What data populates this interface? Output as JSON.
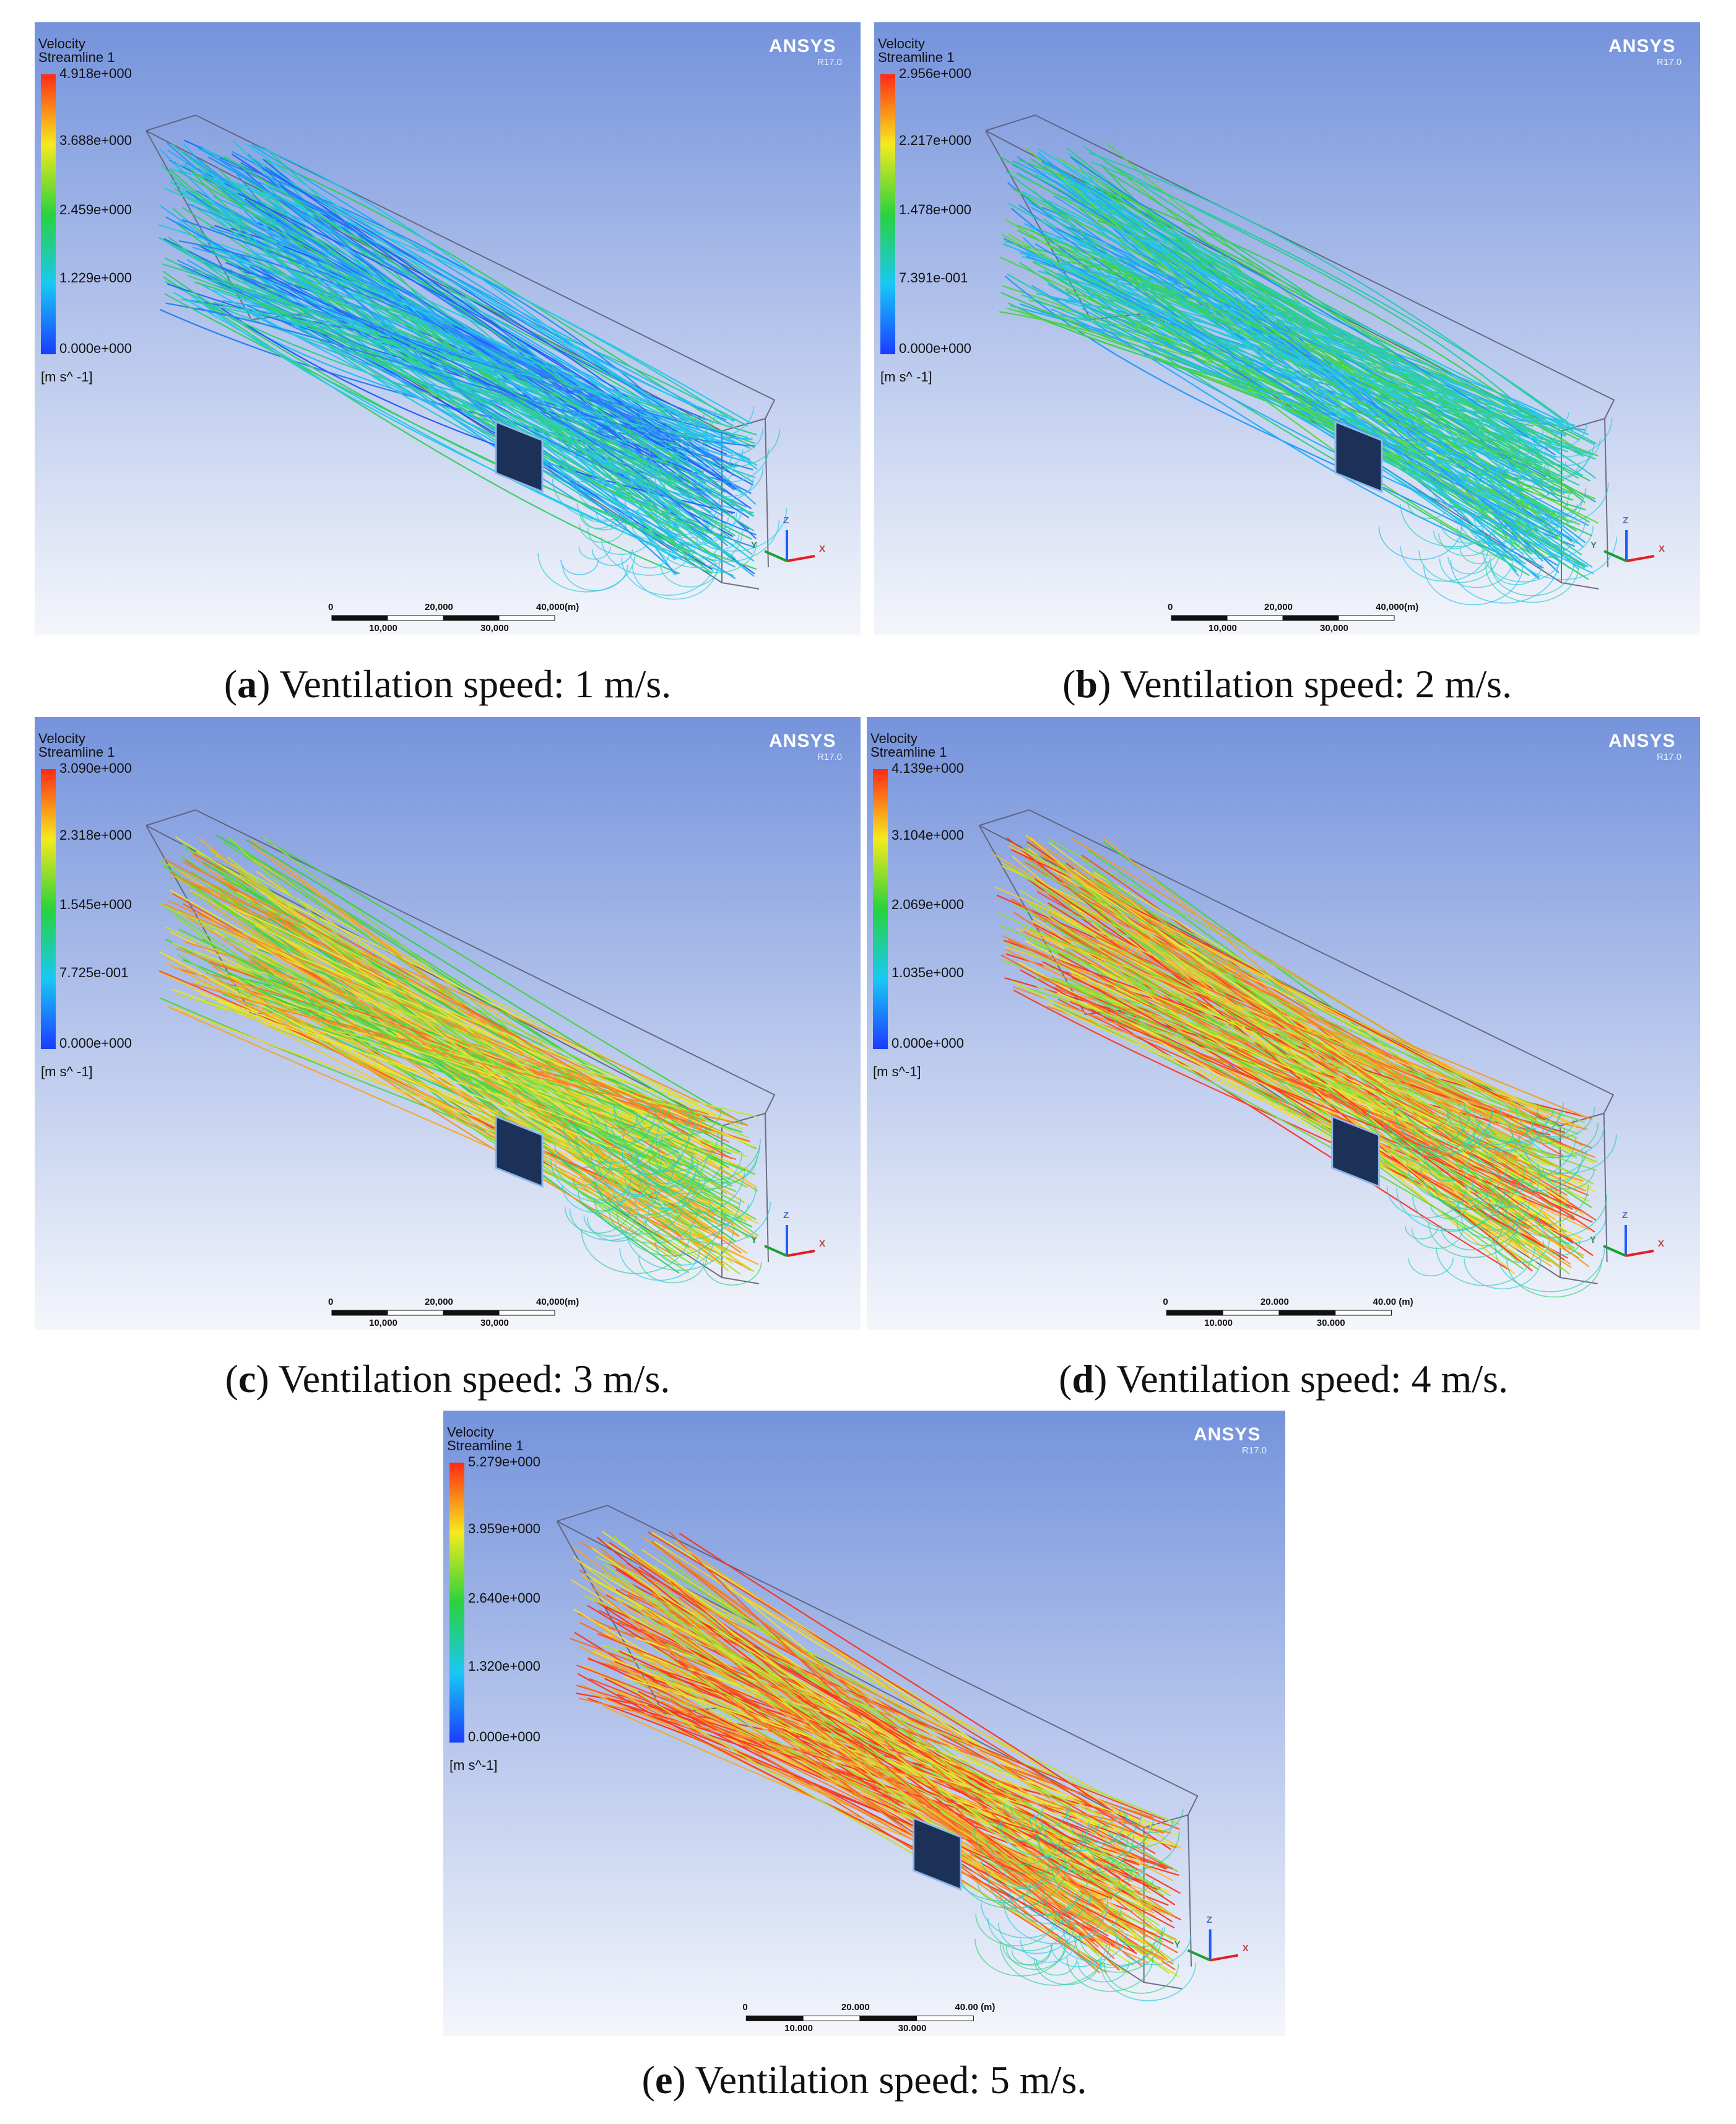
{
  "colors": {
    "bg_top": "#7593dc",
    "bg_bottom": "#f4f6fb",
    "obstacle": "#1c3158",
    "colormap": [
      "#1a3cff",
      "#19c8f5",
      "#2ad23c",
      "#f5ea1e",
      "#ff2a14"
    ]
  },
  "panels": [
    {
      "id": "a",
      "legend_title": [
        "Velocity",
        "Streamline 1"
      ],
      "ticks": [
        "4.918e+000",
        "3.688e+000",
        "2.459e+000",
        "1.229e+000",
        "0.000e+000"
      ],
      "unit": "[m s^ -1]",
      "brand": "ANSYS",
      "version": "R17.0",
      "scale_labels_top": [
        "0",
        "20,000",
        "40,000(m)"
      ],
      "scale_labels_bottom": [
        "10,000",
        "30,000"
      ],
      "axis_labels": [
        "Z",
        "Y",
        "X"
      ],
      "caption_letter": "a",
      "caption_text": " Ventilation speed: 1 m/s.",
      "flow_intensity": 0.25,
      "streamline_style": "recirculating"
    },
    {
      "id": "b",
      "legend_title": [
        "Velocity",
        "Streamline 1"
      ],
      "ticks": [
        "2.956e+000",
        "2.217e+000",
        "1.478e+000",
        "7.391e-001",
        "0.000e+000"
      ],
      "unit": "[m s^ -1]",
      "brand": "ANSYS",
      "version": "R17.0",
      "scale_labels_top": [
        "0",
        "20,000",
        "40,000(m)"
      ],
      "scale_labels_bottom": [
        "10,000",
        "30,000"
      ],
      "axis_labels": [
        "Z",
        "Y",
        "X"
      ],
      "caption_letter": "b",
      "caption_text": " Ventilation speed: 2 m/s.",
      "flow_intensity": 0.35,
      "streamline_style": "recirculating"
    },
    {
      "id": "c",
      "legend_title": [
        "Velocity",
        "Streamline 1"
      ],
      "ticks": [
        "3.090e+000",
        "2.318e+000",
        "1.545e+000",
        "7.725e-001",
        "0.000e+000"
      ],
      "unit": "[m s^ -1]",
      "brand": "ANSYS",
      "version": "R17.0",
      "scale_labels_top": [
        "0",
        "20,000",
        "40,000(m)"
      ],
      "scale_labels_bottom": [
        "10,000",
        "30,000"
      ],
      "axis_labels": [
        "Z",
        "Y",
        "X"
      ],
      "caption_letter": "c",
      "caption_text": " Ventilation speed: 3 m/s.",
      "flow_intensity": 0.75,
      "streamline_style": "mostly-straight"
    },
    {
      "id": "d",
      "legend_title": [
        "Velocity",
        "Streamline 1"
      ],
      "ticks": [
        "4.139e+000",
        "3.104e+000",
        "2.069e+000",
        "1.035e+000",
        "0.000e+000"
      ],
      "unit": "[m s^-1]",
      "brand": "ANSYS",
      "version": "R17.0",
      "scale_labels_top": [
        "0",
        "20.000",
        "40.00 (m)"
      ],
      "scale_labels_bottom": [
        "10.000",
        "30.000"
      ],
      "axis_labels": [
        "Z",
        "Y",
        "X"
      ],
      "caption_letter": "d",
      "caption_text": " Ventilation speed: 4 m/s.",
      "flow_intensity": 0.85,
      "streamline_style": "straight"
    },
    {
      "id": "e",
      "legend_title": [
        "Velocity",
        "Streamline 1"
      ],
      "ticks": [
        "5.279e+000",
        "3.959e+000",
        "2.640e+000",
        "1.320e+000",
        "0.000e+000"
      ],
      "unit": "[m s^-1]",
      "brand": "ANSYS",
      "version": "R17.0",
      "scale_labels_top": [
        "0",
        "20.000",
        "40.00 (m)"
      ],
      "scale_labels_bottom": [
        "10.000",
        "30.000"
      ],
      "axis_labels": [
        "Z",
        "Y",
        "X"
      ],
      "caption_letter": "e",
      "caption_text": " Ventilation speed: 5 m/s.",
      "flow_intensity": 0.9,
      "streamline_style": "straight"
    }
  ]
}
